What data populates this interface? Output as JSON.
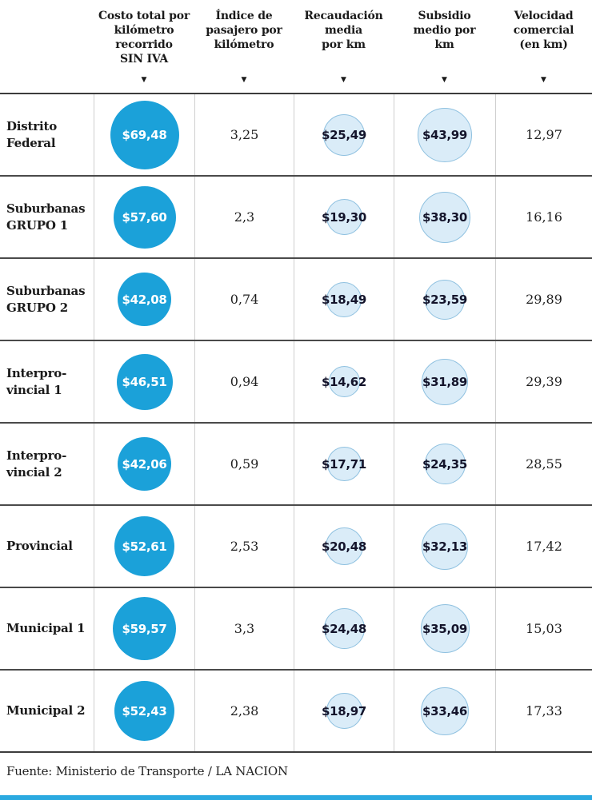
{
  "table": {
    "sort_icon": "▼",
    "headers": [
      {
        "label": "Costo total por\nkilómetro\nrecorrido\nSIN IVA"
      },
      {
        "label": "Índice de\npasajero por\nkilómetro"
      },
      {
        "label": "Recaudación\nmedia\npor km"
      },
      {
        "label": "Subsidio\nmedio por\nkm"
      },
      {
        "label": "Velocidad\ncomercial\n(en km)"
      }
    ],
    "rows": [
      {
        "label": "Distrito\nFederal",
        "costo": "$69,48",
        "costo_value": 69.48,
        "indice": "3,25",
        "recaudacion": "$25,49",
        "recaudacion_value": 25.49,
        "subsidio": "$43,99",
        "subsidio_value": 43.99,
        "velocidad": "12,97"
      },
      {
        "label": "Suburbanas\nGRUPO 1",
        "costo": "$57,60",
        "costo_value": 57.6,
        "indice": "2,3",
        "recaudacion": "$19,30",
        "recaudacion_value": 19.3,
        "subsidio": "$38,30",
        "subsidio_value": 38.3,
        "velocidad": "16,16"
      },
      {
        "label": "Suburbanas\nGRUPO 2",
        "costo": "$42,08",
        "costo_value": 42.08,
        "indice": "0,74",
        "recaudacion": "$18,49",
        "recaudacion_value": 18.49,
        "subsidio": "$23,59",
        "subsidio_value": 23.59,
        "velocidad": "29,89"
      },
      {
        "label": "Interpro-\nvincial 1",
        "costo": "$46,51",
        "costo_value": 46.51,
        "indice": "0,94",
        "recaudacion": "$14,62",
        "recaudacion_value": 14.62,
        "subsidio": "$31,89",
        "subsidio_value": 31.89,
        "velocidad": "29,39"
      },
      {
        "label": "Interpro-\nvincial 2",
        "costo": "$42,06",
        "costo_value": 42.06,
        "indice": "0,59",
        "recaudacion": "$17,71",
        "recaudacion_value": 17.71,
        "subsidio": "$24,35",
        "subsidio_value": 24.35,
        "velocidad": "28,55"
      },
      {
        "label": "Provincial",
        "costo": "$52,61",
        "costo_value": 52.61,
        "indice": "2,53",
        "recaudacion": "$20,48",
        "recaudacion_value": 20.48,
        "subsidio": "$32,13",
        "subsidio_value": 32.13,
        "velocidad": "17,42"
      },
      {
        "label": "Municipal 1",
        "costo": "$59,57",
        "costo_value": 59.57,
        "indice": "3,3",
        "recaudacion": "$24,48",
        "recaudacion_value": 24.48,
        "subsidio": "$35,09",
        "subsidio_value": 35.09,
        "velocidad": "15,03"
      },
      {
        "label": "Municipal 2",
        "costo": "$52,43",
        "costo_value": 52.43,
        "indice": "2,38",
        "recaudacion": "$18,97",
        "recaudacion_value": 18.97,
        "subsidio": "$33,46",
        "subsidio_value": 33.46,
        "velocidad": "17,33"
      }
    ]
  },
  "chart_data": {
    "type": "table",
    "title": "",
    "columns": [
      "Costo total por kilómetro recorrido SIN IVA",
      "Índice de pasajero por kilómetro",
      "Recaudación media por km",
      "Subsidio medio por km",
      "Velocidad comercial (en km)"
    ],
    "categories": [
      "Distrito Federal",
      "Suburbanas GRUPO 1",
      "Suburbanas GRUPO 2",
      "Interprovincial 1",
      "Interprovincial 2",
      "Provincial",
      "Municipal 1",
      "Municipal 2"
    ],
    "series": [
      {
        "name": "Costo total por kilómetro recorrido SIN IVA",
        "unit": "$",
        "style": "bubble-solid-blue",
        "values": [
          69.48,
          57.6,
          42.08,
          46.51,
          42.06,
          52.61,
          59.57,
          52.43
        ]
      },
      {
        "name": "Índice de pasajero por kilómetro",
        "style": "text",
        "values": [
          3.25,
          2.3,
          0.74,
          0.94,
          0.59,
          2.53,
          3.3,
          2.38
        ]
      },
      {
        "name": "Recaudación media por km",
        "unit": "$",
        "style": "bubble-light-blue",
        "values": [
          25.49,
          19.3,
          18.49,
          14.62,
          17.71,
          20.48,
          24.48,
          18.97
        ]
      },
      {
        "name": "Subsidio medio por km",
        "unit": "$",
        "style": "bubble-light-blue",
        "values": [
          43.99,
          38.3,
          23.59,
          31.89,
          24.35,
          32.13,
          35.09,
          33.46
        ]
      },
      {
        "name": "Velocidad comercial (en km)",
        "style": "text",
        "values": [
          12.97,
          16.16,
          29.89,
          29.39,
          28.55,
          17.42,
          15.03,
          17.33
        ]
      }
    ],
    "bubble_scale": "diameter proportional to sqrt(value)",
    "source": "Fuente: Ministerio de Transporte / LA NACION"
  },
  "footer": {
    "source": "Fuente: Ministerio de Transporte / LA NACION"
  },
  "colors": {
    "bubble_solid": "#1ba1d9",
    "bubble_light_fill": "#daecf8",
    "bubble_light_border": "#8fc1e0",
    "rule_dark": "#3c3c3c",
    "bottom_bar": "#2aa9e0"
  }
}
